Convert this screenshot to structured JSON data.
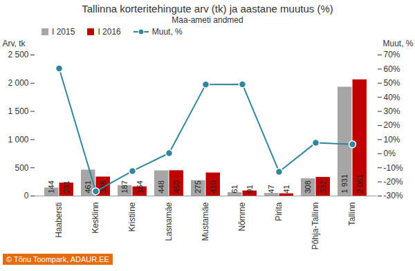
{
  "chart_data": {
    "type": "bar",
    "title": "Tallinna korteritehingute arv (tk) ja aastane muutus (%)",
    "subtitle": "Maa-ameti andmed",
    "caption": "© Tõnu Toompark, ADAUR.EE",
    "y_label": "Arv, tk",
    "y2_label": "Muut, %",
    "categories": [
      "Haabersti",
      "Kesklinn",
      "Kristiine",
      "Lasnamäe",
      "Mustamäe",
      "Nõmme",
      "Pirita",
      "Põhja-Tallinn",
      "Tallinn"
    ],
    "series": [
      {
        "name": "I 2015",
        "type": "bar",
        "color": "#a6a6a6",
        "values": [
          144,
          461,
          187,
          448,
          275,
          61,
          47,
          308,
          1931
        ],
        "value_labels": [
          "144",
          "461",
          "187",
          "448",
          "275",
          "61",
          "47",
          "308",
          "1 931"
        ]
      },
      {
        "name": "I 2016",
        "type": "bar",
        "color": "#c00000",
        "values": [
          231,
          338,
          164,
          450,
          410,
          91,
          41,
          332,
          2061
        ],
        "value_labels": [
          "231",
          "338",
          "164",
          "450",
          "410",
          "91",
          "41",
          "332",
          "2 061"
        ]
      },
      {
        "name": "Muut, %",
        "type": "line",
        "axis": "y2",
        "color": "#31859c",
        "marker": "circle",
        "values": [
          60.4,
          -26.7,
          -12.3,
          0.4,
          49.1,
          49.2,
          -12.8,
          7.8,
          6.7
        ]
      }
    ],
    "ylim": [
      0,
      2500
    ],
    "yticks": [
      0,
      500,
      {
        "value": 1000,
        "label": "1 000"
      },
      {
        "value": 1500,
        "label": "1 500"
      },
      {
        "value": 2000,
        "label": "2 000"
      },
      {
        "value": 2500,
        "label": "2 500"
      }
    ],
    "y2lim": [
      -30,
      70
    ],
    "y2ticks": [
      {
        "value": -30,
        "label": "-30%"
      },
      {
        "value": -20,
        "label": "-20%"
      },
      {
        "value": -10,
        "label": "-10%"
      },
      {
        "value": 0,
        "label": "0%"
      },
      {
        "value": 10,
        "label": "10%"
      },
      {
        "value": 20,
        "label": "20%"
      },
      {
        "value": 30,
        "label": "30%"
      },
      {
        "value": 40,
        "label": "40%"
      },
      {
        "value": 50,
        "label": "50%"
      },
      {
        "value": 60,
        "label": "60%"
      },
      {
        "value": 70,
        "label": "70%"
      }
    ],
    "data_labels": true,
    "legend": "top-left",
    "grid": false
  }
}
